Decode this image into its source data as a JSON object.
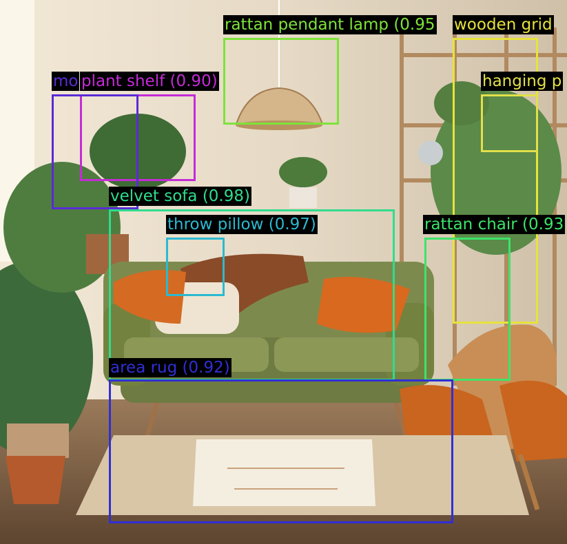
{
  "image": {
    "scene": "living-room-photo"
  },
  "detections": [
    {
      "id": "lamp",
      "label": "rattan pendant lamp",
      "score": "(0.95",
      "color": "#7ee33a"
    },
    {
      "id": "grid",
      "label": "wooden grid",
      "score": "",
      "color": "#e7e33a"
    },
    {
      "id": "hanging",
      "label": "hanging p",
      "score": "",
      "color": "#e2e04a"
    },
    {
      "id": "plantshelf",
      "label": "plant shelf",
      "score": "(0.90)",
      "color": "#c42bd6"
    },
    {
      "id": "mo",
      "label": "mo",
      "score": "",
      "color": "#5a2bd6"
    },
    {
      "id": "sofa",
      "label": "velvet sofa",
      "score": "(0.98)",
      "color": "#2fdc8d"
    },
    {
      "id": "pillow",
      "label": "throw pillow",
      "score": "(0.97)",
      "color": "#2bb9d0"
    },
    {
      "id": "chair",
      "label": "rattan chair",
      "score": "(0.93",
      "color": "#3ee36a"
    },
    {
      "id": "rug",
      "label": "area rug",
      "score": "(0.92)",
      "color": "#2f2fd6"
    }
  ]
}
